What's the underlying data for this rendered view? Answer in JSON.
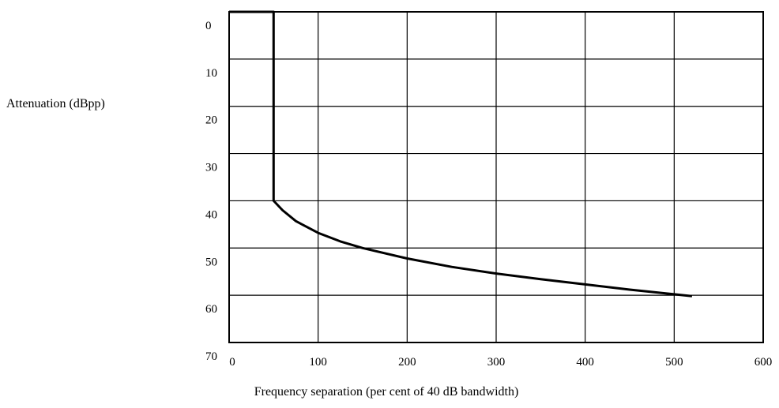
{
  "chart_data": {
    "type": "line",
    "xlabel": "Frequency separation (per cent of 40 dB bandwidth)",
    "ylabel": "Attenuation (dBpp)",
    "xlim": [
      0,
      600
    ],
    "ylim": [
      0,
      70
    ],
    "y_inverted": true,
    "grid": true,
    "x_ticks": [
      0,
      100,
      200,
      300,
      400,
      500,
      600
    ],
    "y_ticks": [
      0,
      10,
      20,
      30,
      40,
      50,
      60,
      70
    ],
    "series": [
      {
        "x": [
          0,
          50,
          50,
          60,
          75,
          100,
          125,
          150,
          200,
          250,
          300,
          350,
          400,
          450,
          500,
          520
        ],
        "y": [
          0,
          0,
          40,
          42,
          44.3,
          46.8,
          48.6,
          50,
          52.2,
          54,
          55.4,
          56.6,
          57.7,
          58.8,
          59.8,
          60.2
        ]
      }
    ]
  }
}
